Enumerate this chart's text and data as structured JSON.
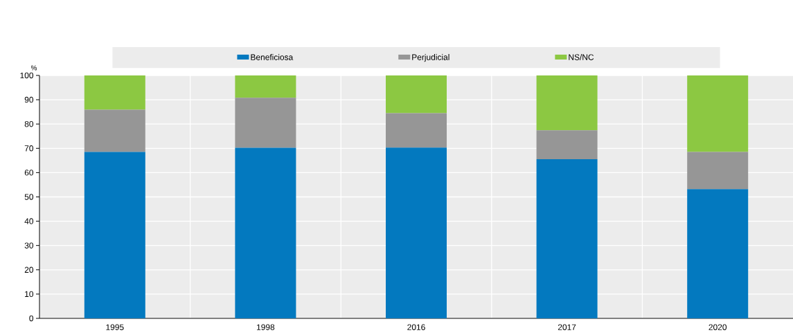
{
  "chart_data": {
    "type": "bar",
    "stacked": true,
    "ylabel": "%",
    "categories": [
      "1995",
      "1998",
      "2016",
      "2017",
      "2020"
    ],
    "series": [
      {
        "name": "Beneficiosa",
        "color": "#0379bf",
        "values": [
          68.5,
          70.2,
          70.3,
          65.5,
          53.2
        ]
      },
      {
        "name": "Perjudicial",
        "color": "#969696",
        "values": [
          17.4,
          20.6,
          14.2,
          11.9,
          15.3
        ]
      },
      {
        "name": "NS/NC",
        "color": "#8cc842",
        "values": [
          14.1,
          9.2,
          15.5,
          22.6,
          31.5
        ]
      }
    ],
    "ylim": [
      0,
      100
    ],
    "yticks": [
      0,
      10,
      20,
      30,
      40,
      50,
      60,
      70,
      80,
      90,
      100
    ],
    "grid": true,
    "legend": "top"
  }
}
